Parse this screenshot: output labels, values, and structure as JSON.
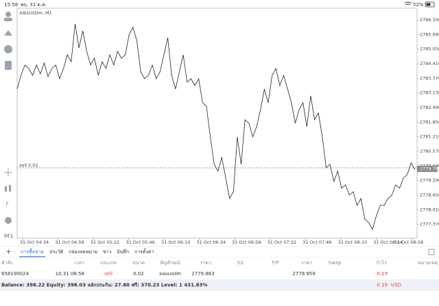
{
  "status_bar": {
    "time": "15:58",
    "date": "พฤ. 31 ต.ค.",
    "battery": "52%"
  },
  "chart_data": {
    "type": "line",
    "symbol": "XAUUSDm, M1",
    "color": "#222222",
    "grid": false,
    "values": [
      2783.3,
      2783.9,
      2784.35,
      2784.2,
      2783.9,
      2784.35,
      2783.96,
      2784.44,
      2783.84,
      2784.2,
      2784.35,
      2783.75,
      2784.2,
      2784.8,
      2784.5,
      2786.15,
      2785.1,
      2785.85,
      2784.95,
      2784.35,
      2784.65,
      2783.9,
      2784.5,
      2784.2,
      2784.8,
      2784.35,
      2784.95,
      2784.65,
      2784.8,
      2785.7,
      2786.0,
      2785.4,
      2784.05,
      2783.75,
      2783.9,
      2784.35,
      2783.75,
      2784.05,
      2784.8,
      2785.55,
      2783.9,
      2783.3,
      2784.05,
      2784.8,
      2783.6,
      2783.75,
      2783.45,
      2783.75,
      2782.7,
      2782.55,
      2781.2,
      2780.0,
      2779.7,
      2780.3,
      2779.4,
      2778.5,
      2778.8,
      2781.2,
      2780.0,
      2781.95,
      2781.8,
      2781.2,
      2781.65,
      2782.4,
      2783.3,
      2782.7,
      2783.9,
      2784.2,
      2783.45,
      2783.9,
      2783.3,
      2782.7,
      2781.8,
      2782.4,
      2782.7,
      2781.65,
      2783.0,
      2781.95,
      2782.25,
      2781.2,
      2779.85,
      2780.0,
      2779.25,
      2779.7,
      2778.95,
      2779.1,
      2778.65,
      2778.8,
      2778.2,
      2778.5,
      2777.6,
      2777.45,
      2777.15,
      2777.75,
      2778.2,
      2778.2,
      2778.5,
      2778.65,
      2779.1,
      2778.95,
      2779.4,
      2779.55,
      2780.06,
      2779.76
    ],
    "ylim": [
      2776.76,
      2786.84
    ],
    "yticks": [
      {
        "value": 2786.33,
        "label": "2786.330"
      },
      {
        "value": 2785.69,
        "label": "2785.690"
      },
      {
        "value": 2785.05,
        "label": "2785.050"
      },
      {
        "value": 2784.41,
        "label": "2784.410"
      },
      {
        "value": 2783.77,
        "label": "2783.770"
      },
      {
        "value": 2783.13,
        "label": "2783.130"
      },
      {
        "value": 2782.49,
        "label": "2782.490"
      },
      {
        "value": 2781.85,
        "label": "2781.850"
      },
      {
        "value": 2781.21,
        "label": "2781.210"
      },
      {
        "value": 2780.57,
        "label": "2780.570"
      },
      {
        "value": 2779.93,
        "label": "2779.930"
      },
      {
        "value": 2779.29,
        "label": "2779.290"
      },
      {
        "value": 2778.65,
        "label": "2778.650"
      },
      {
        "value": 2778.01,
        "label": "2778.010"
      },
      {
        "value": 2777.37,
        "label": "2777.370"
      }
    ],
    "time_labels": [
      "31 Oct 04:34",
      "31 Oct 04:58",
      "31 Oct 05:22",
      "31 Oct 05:46",
      "31 Oct 06:10",
      "31 Oct 06:34",
      "31 Oct 06:58",
      "31 Oct 07:22",
      "31 Oct 07:46",
      "31 Oct 08:10",
      "31 Oct 08:34",
      "31 Oct 08:58"
    ],
    "position_label": "sell 0.02",
    "current_price": 2779.799
  },
  "left_toolbar": {
    "timeframe": "M1"
  },
  "tabs": [
    "การซื้อขาย",
    "ประวัติ",
    "กล่องจดหมาย",
    "ข่าว",
    "บันทึก",
    "การตั้งค่า"
  ],
  "table": {
    "header": [
      "คำสั่ง",
      "เวลา",
      "ประเภท",
      "ขนาด",
      "สัญลักษณ์",
      "ราคา",
      "S/L",
      "T/P",
      "ราคา",
      "Swap",
      "กำไร",
      "หมายเหตุ"
    ],
    "row": {
      "order": "658190024",
      "time": "10.31 08:58",
      "type": "sell",
      "volume": "0.02",
      "symbol": "xauusdm",
      "price": "2779.863",
      "current_price": "2779.959",
      "profit": "-0.19"
    },
    "footer": {
      "summary": "Balance: 398.22 Equity: 398.03 หลักประกัน: 27.80 ฟรี: 370.23 Level: 1 431.83%",
      "profit": "-0.19",
      "currency": "USD"
    }
  }
}
